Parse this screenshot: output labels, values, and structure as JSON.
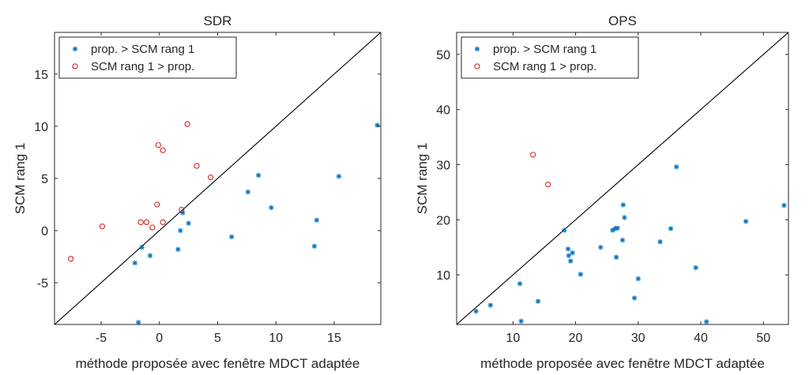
{
  "colors": {
    "series_prop": "#0072BD",
    "series_scm": "#D62728",
    "diagonal": "#000000",
    "axes": "#262626"
  },
  "chart_data": [
    {
      "type": "scatter",
      "title": "SDR",
      "xlabel": "méthode proposée avec fenêtre MDCT adaptée",
      "ylabel": "SCM rang 1",
      "xlim": [
        -9,
        19
      ],
      "ylim": [
        -9,
        19
      ],
      "xticks": [
        -5,
        0,
        5,
        10,
        15
      ],
      "yticks": [
        -5,
        0,
        5,
        10,
        15
      ],
      "diagonal_line": true,
      "grid": false,
      "legend_position": "top-left",
      "series": [
        {
          "name": "prop. > SCM rang 1",
          "marker": "asterisk",
          "color": "#0072BD",
          "points": [
            [
              18.7,
              10.1
            ],
            [
              8.5,
              5.3
            ],
            [
              15.4,
              5.2
            ],
            [
              7.6,
              3.7
            ],
            [
              9.6,
              2.2
            ],
            [
              2.0,
              1.7
            ],
            [
              2.5,
              0.7
            ],
            [
              13.5,
              1.0
            ],
            [
              1.8,
              0.0
            ],
            [
              6.2,
              -0.6
            ],
            [
              13.3,
              -1.5
            ],
            [
              1.6,
              -1.8
            ],
            [
              -1.5,
              -1.6
            ],
            [
              -0.8,
              -2.4
            ],
            [
              -2.1,
              -3.1
            ],
            [
              -1.8,
              -8.8
            ]
          ]
        },
        {
          "name": "SCM rang 1 > prop.",
          "marker": "circle",
          "color": "#D62728",
          "points": [
            [
              2.4,
              10.2
            ],
            [
              -0.1,
              8.2
            ],
            [
              0.3,
              7.7
            ],
            [
              3.2,
              6.2
            ],
            [
              4.4,
              5.1
            ],
            [
              -0.2,
              2.5
            ],
            [
              1.9,
              2.0
            ],
            [
              -1.6,
              0.8
            ],
            [
              -1.1,
              0.8
            ],
            [
              0.3,
              0.8
            ],
            [
              -0.6,
              0.3
            ],
            [
              -4.9,
              0.4
            ],
            [
              -7.6,
              -2.7
            ]
          ]
        }
      ]
    },
    {
      "type": "scatter",
      "title": "OPS",
      "xlabel": "méthode proposée avec fenêtre MDCT adaptée",
      "ylabel": "SCM rang 1",
      "xlim": [
        1,
        54
      ],
      "ylim": [
        1,
        54
      ],
      "xticks": [
        10,
        20,
        30,
        40,
        50
      ],
      "yticks": [
        10,
        20,
        30,
        40,
        50
      ],
      "diagonal_line": true,
      "grid": false,
      "legend_position": "top-left",
      "series": [
        {
          "name": "prop. > SCM rang 1",
          "marker": "asterisk",
          "color": "#0072BD",
          "points": [
            [
              36.1,
              29.6
            ],
            [
              27.6,
              22.7
            ],
            [
              53.3,
              22.6
            ],
            [
              27.8,
              20.4
            ],
            [
              47.2,
              19.7
            ],
            [
              26.3,
              18.4
            ],
            [
              26.7,
              18.5
            ],
            [
              35.2,
              18.4
            ],
            [
              25.9,
              18.1
            ],
            [
              18.2,
              18.1
            ],
            [
              27.5,
              16.3
            ],
            [
              33.5,
              16.0
            ],
            [
              24.0,
              15.0
            ],
            [
              18.8,
              14.7
            ],
            [
              19.5,
              14.0
            ],
            [
              18.9,
              13.5
            ],
            [
              26.5,
              13.2
            ],
            [
              19.2,
              12.5
            ],
            [
              39.2,
              11.3
            ],
            [
              20.8,
              10.1
            ],
            [
              30.0,
              9.3
            ],
            [
              11.1,
              8.4
            ],
            [
              6.4,
              4.5
            ],
            [
              29.4,
              5.8
            ],
            [
              14.0,
              5.2
            ],
            [
              4.1,
              3.4
            ],
            [
              11.3,
              1.6
            ],
            [
              40.9,
              1.5
            ]
          ]
        },
        {
          "name": "SCM rang 1 > prop.",
          "marker": "circle",
          "color": "#D62728",
          "points": [
            [
              13.2,
              31.8
            ],
            [
              15.6,
              26.4
            ]
          ]
        }
      ]
    }
  ]
}
